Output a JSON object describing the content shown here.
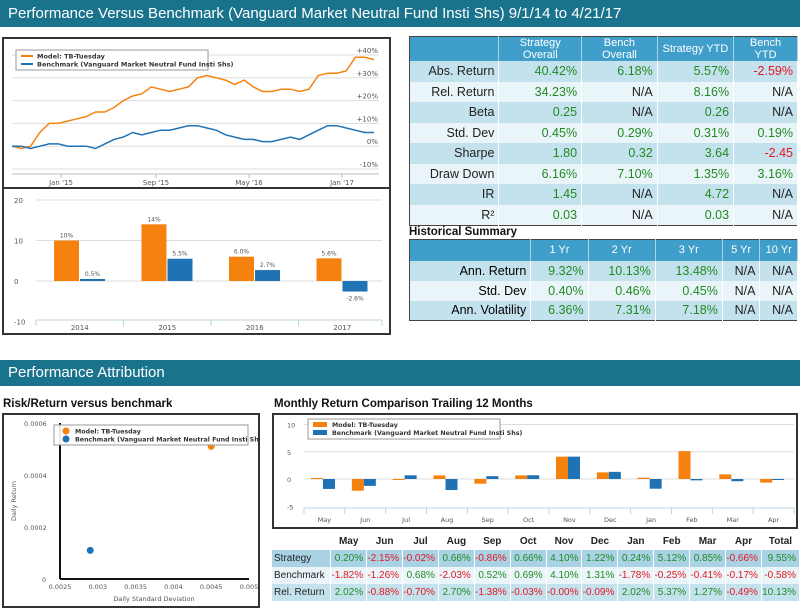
{
  "header": {
    "title": "Performance Versus Benchmark (Vanguard Market Neutral Fund Insti Shs) 9/1/14 to 4/21/17"
  },
  "colors": {
    "model": "#f5820f",
    "benchmark": "#1f72b4",
    "banner": "#1a738c",
    "table_header": "#3f9fca",
    "positive": "#218a21",
    "negative": "#e4161f"
  },
  "legend": {
    "model": "Model: TB-Tuesday",
    "benchmark": "Benchmark (Vanguard Market Neutral Fund Insti Shs)"
  },
  "chart_data": [
    {
      "id": "cumulative",
      "type": "line",
      "title": "",
      "x_ticks": [
        "Jan '15",
        "Sep '15",
        "May '16",
        "Jan '17"
      ],
      "y_ticks": [
        "-10%",
        "0%",
        "+10%",
        "+20%",
        "+30%",
        "+40%"
      ],
      "ylim": [
        -10,
        40
      ],
      "x_range": [
        "Sep 2014",
        "Apr 2017"
      ],
      "series": [
        {
          "name": "Model: TB-Tuesday",
          "values": [
            0,
            -1,
            0,
            6,
            10,
            10,
            11,
            12,
            13,
            15,
            15,
            17,
            20,
            22,
            23,
            26,
            25,
            24,
            25,
            26,
            30,
            31,
            30,
            29,
            27,
            29,
            26,
            24,
            24,
            25,
            25,
            24,
            25,
            31,
            32,
            32,
            33,
            39,
            39,
            38
          ]
        },
        {
          "name": "Benchmark (Vanguard Market Neutral Fund Insti Shs)",
          "values": [
            0,
            0,
            -1,
            0,
            1,
            1,
            0,
            0,
            0,
            -1,
            1,
            3,
            4,
            6,
            5,
            6,
            7,
            7,
            8,
            9,
            9,
            8,
            7,
            5,
            4,
            3,
            3,
            2,
            2,
            3,
            4,
            3,
            5,
            7,
            9,
            9,
            8,
            7,
            6,
            6
          ]
        }
      ]
    },
    {
      "id": "annual",
      "type": "bar",
      "categories": [
        "2014",
        "2015",
        "2016",
        "2017"
      ],
      "ylim": [
        -10,
        20
      ],
      "y_ticks": [
        "-10",
        "0",
        "10",
        "20"
      ],
      "series": [
        {
          "name": "Model: TB-Tuesday",
          "values": [
            10,
            14,
            6.0,
            5.6
          ],
          "labels": [
            "10%",
            "14%",
            "6.0%",
            "5.6%"
          ]
        },
        {
          "name": "Benchmark",
          "values": [
            0.5,
            5.5,
            2.7,
            -2.6
          ],
          "labels": [
            "0.5%",
            "5.5%",
            "2.7%",
            "-2.6%"
          ]
        }
      ]
    },
    {
      "id": "risk-return",
      "type": "scatter",
      "title": "Risk/Return versus benchmark",
      "xlabel": "Daily Standard Deviation",
      "ylabel": "Daily Return",
      "xlim": [
        0.0025,
        0.005
      ],
      "ylim": [
        0,
        0.0006
      ],
      "x_ticks": [
        "0.0025",
        "0.003",
        "0.0035",
        "0.004",
        "0.0045",
        "0.005"
      ],
      "y_ticks": [
        "0",
        "0.0002",
        "0.0004",
        "0.0006"
      ],
      "legend_position": "top",
      "series": [
        {
          "name": "Model: TB-Tuesday",
          "x": [
            0.0045
          ],
          "y": [
            0.00051
          ]
        },
        {
          "name": "Benchmark (Vanguard Market Neutral Fund Insti Shs)",
          "x": [
            0.0029
          ],
          "y": [
            0.00011
          ]
        }
      ]
    },
    {
      "id": "monthly",
      "type": "bar",
      "title": "Monthly Return Comparison Trailing 12 Months",
      "categories": [
        "May",
        "Jun",
        "Jul",
        "Aug",
        "Sep",
        "Oct",
        "Nov",
        "Dec",
        "Jan",
        "Feb",
        "Mar",
        "Apr"
      ],
      "ylim": [
        -5,
        10
      ],
      "y_ticks": [
        "-5",
        "0",
        "5",
        "10"
      ],
      "legend_position": "top-left",
      "series": [
        {
          "name": "Model: TB-Tuesday",
          "values": [
            0.2,
            -2.15,
            -0.02,
            0.66,
            -0.86,
            0.66,
            4.1,
            1.22,
            0.24,
            5.12,
            0.85,
            -0.66
          ]
        },
        {
          "name": "Benchmark (Vanguard Market Neutral Fund Insti Shs)",
          "values": [
            -1.82,
            -1.26,
            0.68,
            -2.03,
            0.52,
            0.69,
            4.1,
            1.31,
            -1.78,
            -0.25,
            -0.41,
            -0.17
          ]
        }
      ]
    }
  ],
  "stats_table": {
    "headers": [
      "",
      "Strategy Overall",
      "Bench Overall",
      "Strategy YTD",
      "Bench YTD"
    ],
    "rows": [
      {
        "label": "Abs. Return",
        "cells": [
          [
            "40.42%",
            "pos"
          ],
          [
            "6.18%",
            "pos"
          ],
          [
            "5.57%",
            "pos"
          ],
          [
            "-2.59%",
            "neg"
          ]
        ]
      },
      {
        "label": "Rel. Return",
        "cells": [
          [
            "34.23%",
            "pos"
          ],
          [
            "N/A",
            "na"
          ],
          [
            "8.16%",
            "pos"
          ],
          [
            "N/A",
            "na"
          ]
        ]
      },
      {
        "label": "Beta",
        "cells": [
          [
            "0.25",
            "pos"
          ],
          [
            "N/A",
            "na"
          ],
          [
            "0.26",
            "pos"
          ],
          [
            "N/A",
            "na"
          ]
        ]
      },
      {
        "label": "Std. Dev",
        "cells": [
          [
            "0.45%",
            "pos"
          ],
          [
            "0.29%",
            "pos"
          ],
          [
            "0.31%",
            "pos"
          ],
          [
            "0.19%",
            "pos"
          ]
        ]
      },
      {
        "label": "Sharpe",
        "cells": [
          [
            "1.80",
            "pos"
          ],
          [
            "0.32",
            "pos"
          ],
          [
            "3.64",
            "pos"
          ],
          [
            "-2.45",
            "neg"
          ]
        ]
      },
      {
        "label": "Draw Down",
        "cells": [
          [
            "6.16%",
            "pos"
          ],
          [
            "7.10%",
            "pos"
          ],
          [
            "1.35%",
            "pos"
          ],
          [
            "3.16%",
            "pos"
          ]
        ]
      },
      {
        "label": "IR",
        "cells": [
          [
            "1.45",
            "pos"
          ],
          [
            "N/A",
            "na"
          ],
          [
            "4.72",
            "pos"
          ],
          [
            "N/A",
            "na"
          ]
        ]
      },
      {
        "label": "R²",
        "cells": [
          [
            "0.03",
            "pos"
          ],
          [
            "N/A",
            "na"
          ],
          [
            "0.03",
            "pos"
          ],
          [
            "N/A",
            "na"
          ]
        ]
      }
    ]
  },
  "historical": {
    "title": "Historical Summary",
    "headers": [
      "",
      "1 Yr",
      "2 Yr",
      "3 Yr",
      "5 Yr",
      "10 Yr"
    ],
    "rows": [
      {
        "label": "Ann. Return",
        "cells": [
          [
            "9.32%",
            "pos"
          ],
          [
            "10.13%",
            "pos"
          ],
          [
            "13.48%",
            "pos"
          ],
          [
            "N/A",
            "na"
          ],
          [
            "N/A",
            "na"
          ]
        ]
      },
      {
        "label": "Std. Dev",
        "cells": [
          [
            "0.40%",
            "pos"
          ],
          [
            "0.46%",
            "pos"
          ],
          [
            "0.45%",
            "pos"
          ],
          [
            "N/A",
            "na"
          ],
          [
            "N/A",
            "na"
          ]
        ]
      },
      {
        "label": "Ann. Volatility",
        "cells": [
          [
            "6.36%",
            "pos"
          ],
          [
            "7.31%",
            "pos"
          ],
          [
            "7.18%",
            "pos"
          ],
          [
            "N/A",
            "na"
          ],
          [
            "N/A",
            "na"
          ]
        ]
      }
    ]
  },
  "attribution": {
    "title": "Performance Attribution",
    "risk_title": "Risk/Return versus benchmark",
    "monthly_title": "Monthly Return Comparison Trailing 12 Months"
  },
  "monthly_table": {
    "headers": [
      "",
      "May",
      "Jun",
      "Jul",
      "Aug",
      "Sep",
      "Oct",
      "Nov",
      "Dec",
      "Jan",
      "Feb",
      "Mar",
      "Apr",
      "Total"
    ],
    "rows": [
      {
        "label": "Strategy",
        "cls": "strat",
        "values": [
          "0.20%",
          "-2.15%",
          "-0.02%",
          "0.66%",
          "-0.86%",
          "0.66%",
          "4.10%",
          "1.22%",
          "0.24%",
          "5.12%",
          "0.85%",
          "-0.66%",
          "9.55%"
        ]
      },
      {
        "label": "Benchmark",
        "cls": "bench",
        "values": [
          "-1.82%",
          "-1.26%",
          "0.68%",
          "-2.03%",
          "0.52%",
          "0.69%",
          "4.10%",
          "1.31%",
          "-1.78%",
          "-0.25%",
          "-0.41%",
          "-0.17%",
          "-0.58%"
        ]
      },
      {
        "label": "Rel. Return",
        "cls": "rel",
        "values": [
          "2.02%",
          "-0.88%",
          "-0.70%",
          "2.70%",
          "-1.38%",
          "-0.03%",
          "-0.00%",
          "-0.09%",
          "2.02%",
          "5.37%",
          "1.27%",
          "-0.49%",
          "10.13%"
        ]
      }
    ]
  }
}
